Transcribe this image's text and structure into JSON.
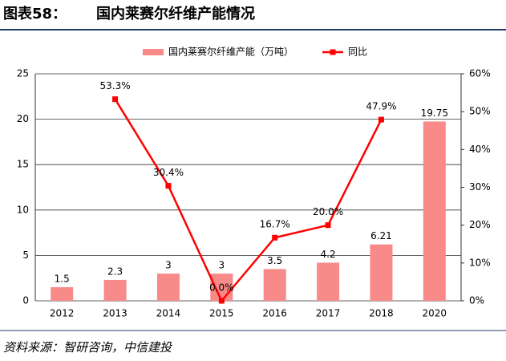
{
  "chart_data": {
    "type": "bar_line",
    "figure_label": "图表58：",
    "title": "国内莱赛尔纤维产能情况",
    "source": "资料来源：智研咨询，中信建投",
    "categories": [
      "2012",
      "2013",
      "2014",
      "2015",
      "2016",
      "2017",
      "2018",
      "2020"
    ],
    "series": [
      {
        "name": "国内莱赛尔纤维产能（万吨）",
        "type": "bar",
        "color": "#f88a8a",
        "values": [
          1.5,
          2.3,
          3,
          3,
          3.5,
          4.2,
          6.21,
          19.75
        ]
      },
      {
        "name": "同比",
        "type": "line",
        "axis": "y2",
        "color": "#ff0000",
        "values": [
          null,
          53.3,
          30.4,
          0.0,
          16.7,
          20.0,
          47.9,
          null
        ],
        "value_labels": [
          null,
          "53.3%",
          "30.4%",
          "0.0%",
          "16.7%",
          "20.0%",
          "47.9%",
          null
        ]
      }
    ],
    "ylim": [
      0,
      25
    ],
    "yticks": [
      0,
      5,
      10,
      15,
      20,
      25
    ],
    "y2lim": [
      0,
      60
    ],
    "y2ticks": [
      {
        "value": 0,
        "label": "0%"
      },
      {
        "value": 10,
        "label": "10%"
      },
      {
        "value": 20,
        "label": "20%"
      },
      {
        "value": 30,
        "label": "30%"
      },
      {
        "value": 40,
        "label": "40%"
      },
      {
        "value": 50,
        "label": "50%"
      },
      {
        "value": 60,
        "label": "60%"
      }
    ],
    "grid": true,
    "legend": "top"
  }
}
